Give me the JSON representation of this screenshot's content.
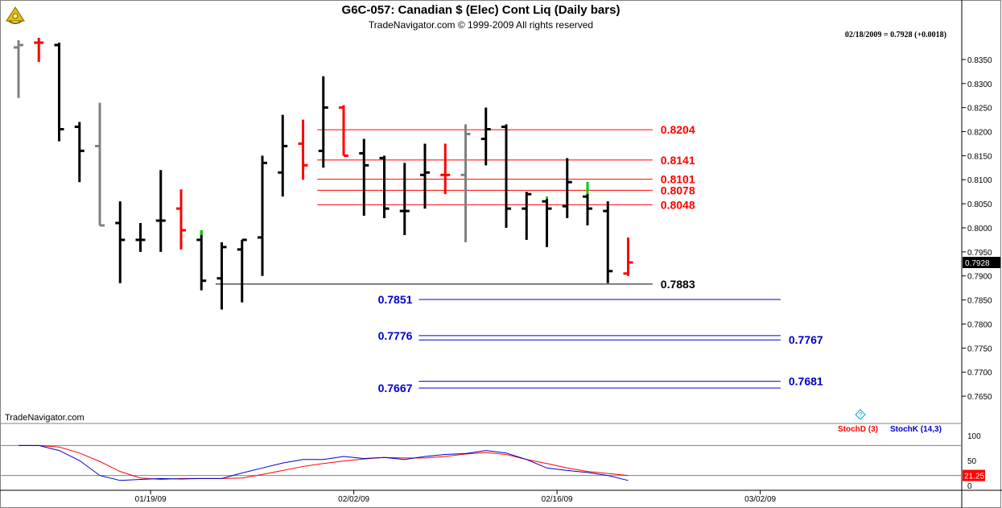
{
  "header": {
    "title": "G6C-057:  Canadian $ (Elec) Cont Liq  (Daily bars)",
    "subtitle": "TradeNavigator.com © 1999-2009 All rights reserved",
    "date_readout": "02/18/2009 = 0.7928 (+0.0018)"
  },
  "footer": {
    "brand": "TradeNavigator.com"
  },
  "colors": {
    "up": "#000000",
    "down": "#ff0000",
    "neutral": "#808080",
    "green": "#00cc00",
    "blue_level": "#0000cc",
    "red_level": "#ff0000"
  },
  "chart_data": [
    {
      "type": "ohlc",
      "y_ticks": [
        "0.8350",
        "0.8300",
        "0.8250",
        "0.8200",
        "0.8150",
        "0.8100",
        "0.8050",
        "0.8000",
        "0.7950",
        "0.7900",
        "0.7850",
        "0.7800",
        "0.7750",
        "0.7700",
        "0.7650"
      ],
      "ylim": [
        0.761,
        0.8395
      ],
      "x_ticks": [
        {
          "label": "01/19/09",
          "index": 6.5
        },
        {
          "label": "02/02/09",
          "index": 16.5
        },
        {
          "label": "02/16/09",
          "index": 26.5
        },
        {
          "label": "03/02/09",
          "index": 36.5
        }
      ],
      "bars": [
        {
          "o": 0.8375,
          "h": 0.839,
          "l": 0.827,
          "c": 0.838,
          "color": "neutral"
        },
        {
          "o": 0.8385,
          "h": 0.8395,
          "l": 0.8345,
          "c": 0.8385,
          "color": "down"
        },
        {
          "o": 0.838,
          "h": 0.8385,
          "l": 0.818,
          "c": 0.8205,
          "color": "up"
        },
        {
          "o": 0.821,
          "h": 0.822,
          "l": 0.8095,
          "c": 0.816,
          "color": "up"
        },
        {
          "o": 0.817,
          "h": 0.826,
          "l": 0.8005,
          "c": 0.8005,
          "color": "neutral"
        },
        {
          "o": 0.801,
          "h": 0.8055,
          "l": 0.7885,
          "c": 0.7975,
          "color": "up"
        },
        {
          "o": 0.7975,
          "h": 0.801,
          "l": 0.795,
          "c": 0.7975,
          "color": "up"
        },
        {
          "o": 0.8015,
          "h": 0.812,
          "l": 0.795,
          "c": 0.8015,
          "color": "up"
        },
        {
          "o": 0.804,
          "h": 0.808,
          "l": 0.7955,
          "c": 0.7995,
          "color": "down"
        },
        {
          "o": 0.7975,
          "h": 0.7995,
          "l": 0.787,
          "c": 0.789,
          "color": "up"
        },
        {
          "o": 0.7895,
          "h": 0.797,
          "l": 0.783,
          "c": 0.796,
          "color": "up"
        },
        {
          "o": 0.7955,
          "h": 0.7975,
          "l": 0.7845,
          "c": 0.7975,
          "color": "up"
        },
        {
          "o": 0.798,
          "h": 0.815,
          "l": 0.79,
          "c": 0.8135,
          "color": "up"
        },
        {
          "o": 0.8115,
          "h": 0.8235,
          "l": 0.8065,
          "c": 0.817,
          "color": "up"
        },
        {
          "o": 0.8175,
          "h": 0.8225,
          "l": 0.81,
          "c": 0.813,
          "color": "down"
        },
        {
          "o": 0.816,
          "h": 0.8315,
          "l": 0.8125,
          "c": 0.825,
          "color": "up"
        },
        {
          "o": 0.825,
          "h": 0.8255,
          "l": 0.815,
          "c": 0.815,
          "color": "down"
        },
        {
          "o": 0.8155,
          "h": 0.8185,
          "l": 0.8025,
          "c": 0.813,
          "color": "up"
        },
        {
          "o": 0.8145,
          "h": 0.815,
          "l": 0.802,
          "c": 0.804,
          "color": "up"
        },
        {
          "o": 0.8035,
          "h": 0.8135,
          "l": 0.7985,
          "c": 0.8035,
          "color": "up"
        },
        {
          "o": 0.811,
          "h": 0.8175,
          "l": 0.804,
          "c": 0.8115,
          "color": "up"
        },
        {
          "o": 0.811,
          "h": 0.8175,
          "l": 0.807,
          "c": 0.811,
          "color": "down"
        },
        {
          "o": 0.811,
          "h": 0.8215,
          "l": 0.797,
          "c": 0.8195,
          "color": "neutral"
        },
        {
          "o": 0.8185,
          "h": 0.825,
          "l": 0.813,
          "c": 0.8205,
          "color": "up"
        },
        {
          "o": 0.821,
          "h": 0.8215,
          "l": 0.8,
          "c": 0.804,
          "color": "up"
        },
        {
          "o": 0.804,
          "h": 0.8075,
          "l": 0.7975,
          "c": 0.807,
          "color": "up"
        },
        {
          "o": 0.8055,
          "h": 0.8065,
          "l": 0.796,
          "c": 0.804,
          "color": "up"
        },
        {
          "o": 0.8045,
          "h": 0.8145,
          "l": 0.802,
          "c": 0.8095,
          "color": "up"
        },
        {
          "o": 0.8065,
          "h": 0.8095,
          "l": 0.8005,
          "c": 0.804,
          "color": "up"
        },
        {
          "o": 0.8035,
          "h": 0.8055,
          "l": 0.7885,
          "c": 0.791,
          "color": "up"
        },
        {
          "o": 0.7905,
          "h": 0.798,
          "l": 0.79,
          "c": 0.7928,
          "color": "down"
        }
      ],
      "green_ticks": [
        {
          "index": 9,
          "from": 0.7985,
          "to": 0.7995
        },
        {
          "index": 26,
          "from": 0.806,
          "to": 0.8065
        },
        {
          "index": 28,
          "from": 0.807,
          "to": 0.8095
        }
      ],
      "last_price_label": "0.7928",
      "levels": [
        {
          "value": 0.8204,
          "label": "0.8204",
          "color": "red",
          "from": 14.7,
          "to": 31.2,
          "label_side": "right"
        },
        {
          "value": 0.8141,
          "label": "0.8141",
          "color": "red",
          "from": 14.7,
          "to": 31.2,
          "label_side": "right"
        },
        {
          "value": 0.8101,
          "label": "0.8101",
          "color": "red",
          "from": 14.7,
          "to": 31.2,
          "label_side": "right"
        },
        {
          "value": 0.8078,
          "label": "0.8078",
          "color": "red",
          "from": 14.7,
          "to": 31.2,
          "label_side": "right"
        },
        {
          "value": 0.8048,
          "label": "0.8048",
          "color": "red",
          "from": 14.7,
          "to": 31.2,
          "label_side": "right"
        },
        {
          "value": 0.7883,
          "label": "0.7883",
          "color": "black",
          "from": 9.7,
          "to": 31.2,
          "label_side": "right"
        },
        {
          "value": 0.7851,
          "label": "0.7851",
          "color": "blue",
          "from": 19.7,
          "to": 37.5,
          "label_side": "left"
        },
        {
          "value": 0.7776,
          "label": "0.7776",
          "color": "blue",
          "from": 19.7,
          "to": 37.5,
          "label_side": "left"
        },
        {
          "value": 0.7767,
          "label": "0.7767",
          "color": "blue",
          "from": 19.7,
          "to": 37.5,
          "label_side": "right"
        },
        {
          "value": 0.7681,
          "label": "0.7681",
          "color": "blue",
          "from": 19.7,
          "to": 37.5,
          "label_side": "right"
        },
        {
          "value": 0.7667,
          "label": "0.7667",
          "color": "blue",
          "from": 19.7,
          "to": 37.5,
          "label_side": "left"
        }
      ]
    },
    {
      "type": "line",
      "title": "",
      "legend": [
        "StochD (3)",
        "StochK (14,3)"
      ],
      "y_ticks": [
        "100",
        "50",
        "0"
      ],
      "ylim": [
        0,
        100
      ],
      "guides": [
        80,
        20
      ],
      "last_value_label": "21.25",
      "series": [
        {
          "name": "StochD (3)",
          "color": "red",
          "x": [
            0,
            1,
            2,
            3,
            4,
            5,
            6,
            7,
            8,
            9,
            10,
            11,
            12,
            13,
            14,
            15,
            16,
            17,
            18,
            19,
            20,
            21,
            22,
            23,
            24,
            25,
            26,
            27,
            28,
            29,
            30
          ],
          "values": [
            80,
            80,
            77,
            65,
            48,
            28,
            15,
            12,
            14,
            14,
            14,
            15,
            22,
            30,
            38,
            44,
            49,
            53,
            56,
            55,
            55,
            58,
            63,
            66,
            62,
            52,
            44,
            35,
            28,
            24,
            20
          ]
        },
        {
          "name": "StochK (14,3)",
          "color": "blue",
          "x": [
            0,
            1,
            2,
            3,
            4,
            5,
            6,
            7,
            8,
            9,
            10,
            11,
            12,
            13,
            14,
            15,
            16,
            17,
            18,
            19,
            20,
            21,
            22,
            23,
            24,
            25,
            26,
            27,
            28,
            29,
            30
          ],
          "values": [
            80,
            80,
            70,
            50,
            20,
            10,
            12,
            14,
            13,
            14,
            14,
            25,
            35,
            45,
            52,
            52,
            58,
            54,
            56,
            52,
            58,
            62,
            64,
            70,
            65,
            52,
            35,
            30,
            26,
            20,
            10
          ]
        }
      ]
    }
  ],
  "stoch_legend": {
    "d_label": "StochD (3)",
    "k_label": "StochK (14,3)"
  }
}
